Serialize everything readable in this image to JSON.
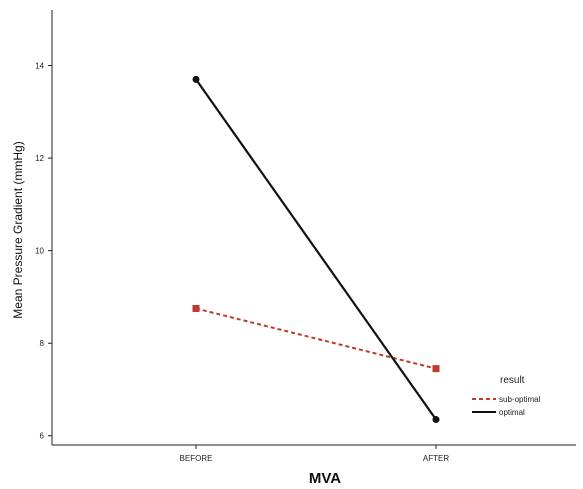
{
  "chart_data": {
    "type": "line",
    "xlabel": "MVA",
    "ylabel": "Mean Pressure Gradient (mmHg)",
    "categories": [
      "BEFORE",
      "AFTER"
    ],
    "ylim": [
      5.8,
      15.2
    ],
    "yticks": [
      6,
      8,
      10,
      12,
      14
    ],
    "grid": false,
    "legend_position": "bottom-right",
    "legend_title": "result",
    "series": [
      {
        "name": "sub-optimal",
        "values": [
          8.75,
          7.45
        ],
        "color": "#c0392b",
        "line_style": "dashed",
        "marker": "square"
      },
      {
        "name": "optimal",
        "values": [
          13.7,
          6.35
        ],
        "color": "#111111",
        "line_style": "solid",
        "marker": "circle"
      }
    ]
  }
}
